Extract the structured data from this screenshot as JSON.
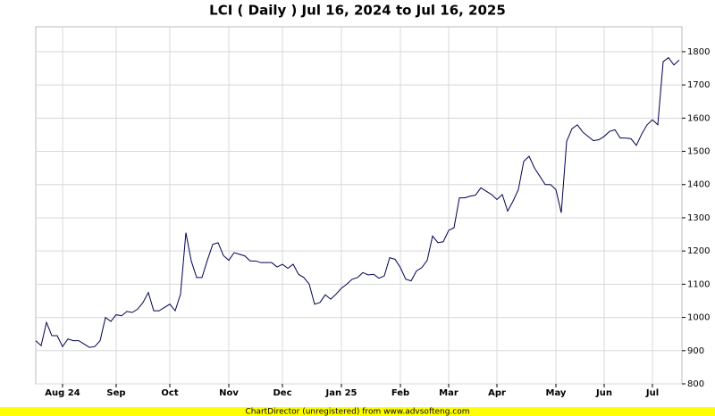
{
  "chart_data": {
    "type": "line",
    "title": "LCI ( Daily ) Jul 16, 2024 to Jul 16, 2025",
    "footer": "ChartDirector (unregistered) from www.advsofteng.com",
    "categories": [
      null,
      null,
      null,
      null,
      null,
      "Aug 24",
      null,
      null,
      null,
      null,
      null,
      null,
      null,
      null,
      null,
      "Sep",
      null,
      null,
      null,
      null,
      null,
      null,
      null,
      null,
      null,
      "Oct",
      null,
      null,
      null,
      null,
      null,
      null,
      null,
      null,
      null,
      null,
      "Nov",
      null,
      null,
      null,
      null,
      null,
      null,
      null,
      null,
      null,
      "Dec",
      null,
      null,
      null,
      null,
      null,
      null,
      null,
      null,
      null,
      null,
      "Jan 25",
      null,
      null,
      null,
      null,
      null,
      null,
      null,
      null,
      null,
      null,
      "Feb",
      null,
      null,
      null,
      null,
      null,
      null,
      null,
      null,
      "Mar",
      null,
      null,
      null,
      null,
      null,
      null,
      null,
      null,
      "Apr",
      null,
      null,
      null,
      null,
      null,
      null,
      null,
      null,
      null,
      null,
      "May",
      null,
      null,
      null,
      null,
      null,
      null,
      null,
      null,
      "Jun",
      null,
      null,
      null,
      null,
      null,
      null,
      null,
      null,
      "Jul",
      null,
      null,
      null,
      null,
      null
    ],
    "values": [
      930,
      915,
      985,
      945,
      945,
      912,
      935,
      930,
      930,
      920,
      910,
      912,
      930,
      1000,
      988,
      1008,
      1005,
      1018,
      1015,
      1025,
      1045,
      1075,
      1020,
      1020,
      1030,
      1040,
      1020,
      1070,
      1255,
      1170,
      1120,
      1120,
      1172,
      1220,
      1225,
      1186,
      1172,
      1195,
      1190,
      1185,
      1170,
      1170,
      1165,
      1165,
      1165,
      1152,
      1160,
      1148,
      1160,
      1130,
      1120,
      1100,
      1040,
      1045,
      1068,
      1055,
      1070,
      1088,
      1100,
      1115,
      1120,
      1135,
      1128,
      1130,
      1118,
      1125,
      1180,
      1175,
      1150,
      1115,
      1110,
      1140,
      1150,
      1172,
      1245,
      1225,
      1228,
      1262,
      1270,
      1360,
      1360,
      1365,
      1368,
      1390,
      1380,
      1370,
      1355,
      1370,
      1320,
      1350,
      1385,
      1470,
      1485,
      1450,
      1425,
      1400,
      1400,
      1385,
      1315,
      1530,
      1568,
      1580,
      1558,
      1545,
      1532,
      1535,
      1545,
      1560,
      1565,
      1540,
      1540,
      1538,
      1518,
      1552,
      1580,
      1595,
      1580,
      1770,
      1782,
      1760,
      1775
    ],
    "color": "#000050",
    "ylim": [
      800,
      1875
    ],
    "yticks": [
      800,
      900,
      1000,
      1100,
      1200,
      1300,
      1400,
      1500,
      1600,
      1700,
      1800
    ],
    "grid": true
  }
}
